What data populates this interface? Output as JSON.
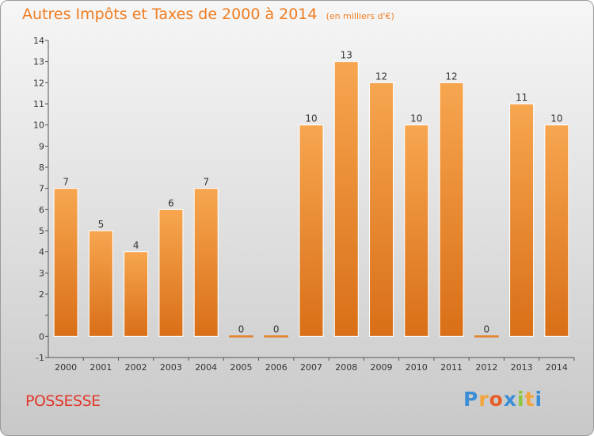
{
  "header": {
    "title": "Autres Impôts et Taxes de 2000 à 2014",
    "unit": "(en milliers d'€)"
  },
  "footer": {
    "commune": "POSSESSE",
    "logo": {
      "letters": [
        "P",
        "r",
        "o",
        "x",
        "i",
        "t",
        "i"
      ],
      "colors": [
        "#3a8ed6",
        "#f3a33b",
        "#e85c2a",
        "#3a8ed6",
        "#8cc63f",
        "#f3a33b",
        "#3a8ed6"
      ]
    }
  },
  "colors": {
    "bar_top": "#f7a650",
    "bar_bottom": "#d96f17",
    "title": "#f07d22",
    "commune": "#e2372b"
  },
  "chart_data": {
    "type": "bar",
    "title": "Autres Impôts et Taxes de 2000 à 2014",
    "subtitle": "(en milliers d'€)",
    "categories": [
      "2000",
      "2001",
      "2002",
      "2003",
      "2004",
      "2005",
      "2006",
      "2007",
      "2008",
      "2009",
      "2010",
      "2011",
      "2012",
      "2013",
      "2014"
    ],
    "values": [
      7,
      5,
      4,
      6,
      7,
      0,
      0,
      10,
      13,
      12,
      10,
      12,
      0,
      11,
      10
    ],
    "value_labels": [
      "7",
      "5",
      "4",
      "6",
      "7",
      "0",
      "0",
      "10",
      "13",
      "12",
      "10",
      "12",
      "0",
      "11",
      "10"
    ],
    "ylim": [
      -1,
      14
    ],
    "yticks": [
      "-1",
      "0",
      "",
      "2",
      "3",
      "4",
      "5",
      "6",
      "7",
      "8",
      "9",
      "10",
      "11",
      "12",
      "13",
      "14"
    ],
    "grid": false
  }
}
